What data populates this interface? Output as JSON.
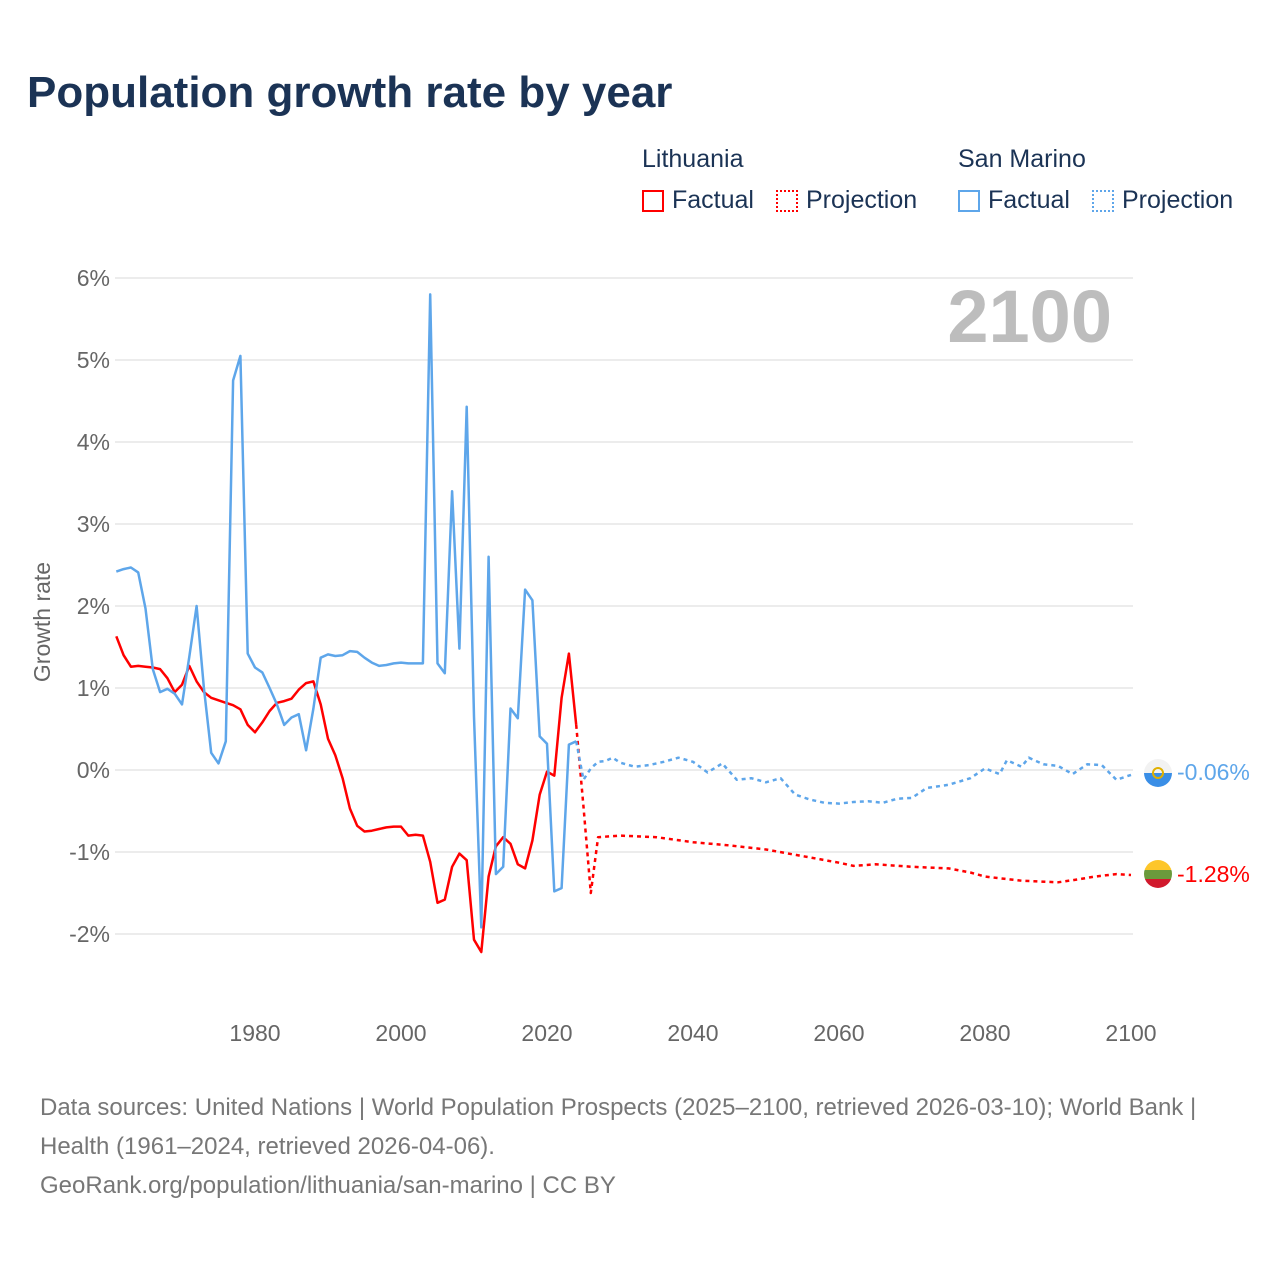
{
  "title": "Population growth rate by year",
  "legend": {
    "groups": [
      {
        "name": "Lithuania",
        "factual": "Factual",
        "projection": "Projection",
        "color": "#ff0000"
      },
      {
        "name": "San Marino",
        "factual": "Factual",
        "projection": "Projection",
        "color": "#5ea6ea"
      }
    ]
  },
  "year_label": "2100",
  "end_labels": {
    "san_marino": "-0.06%",
    "lithuania": "-1.28%"
  },
  "footer": {
    "sources": "Data sources: United Nations | World Population Prospects (2025–2100, retrieved 2026-03-10); World Bank | Health (1961–2024, retrieved 2026-04-06).",
    "link": "GeoRank.org/population/lithuania/san-marino | CC BY"
  },
  "chart_data": {
    "type": "line",
    "title": "Population growth rate by year",
    "xlabel": "",
    "ylabel": "Growth rate",
    "xlim": [
      1961,
      2100
    ],
    "ylim": [
      -3,
      6
    ],
    "xticks": [
      1980,
      2000,
      2020,
      2040,
      2060,
      2080,
      2100
    ],
    "yticks": [
      -2,
      -1,
      0,
      1,
      2,
      3,
      4,
      5,
      6
    ],
    "ytick_labels": [
      "-2%",
      "-1%",
      "0%",
      "1%",
      "2%",
      "3%",
      "4%",
      "5%",
      "6%"
    ],
    "grid": true,
    "series": [
      {
        "name": "Lithuania Factual",
        "color": "#ff0000",
        "style": "solid",
        "x_start": 1961,
        "values": [
          1.63,
          1.4,
          1.26,
          1.27,
          1.26,
          1.25,
          1.23,
          1.12,
          0.95,
          1.04,
          1.27,
          1.08,
          0.95,
          0.88,
          0.85,
          0.82,
          0.79,
          0.74,
          0.55,
          0.46,
          0.58,
          0.72,
          0.82,
          0.84,
          0.87,
          0.98,
          1.06,
          1.08,
          0.8,
          0.38,
          0.18,
          -0.1,
          -0.47,
          -0.68,
          -0.75,
          -0.74,
          -0.72,
          -0.7,
          -0.69,
          -0.69,
          -0.8,
          -0.79,
          -0.8,
          -1.12,
          -1.62,
          -1.58,
          -1.18,
          -1.02,
          -1.1,
          -2.07,
          -2.22,
          -1.3,
          -0.93,
          -0.82,
          -0.9,
          -1.15,
          -1.2,
          -0.86,
          -0.3,
          -0.02,
          -0.07,
          0.88,
          1.42,
          0.55
        ]
      },
      {
        "name": "Lithuania Projection",
        "color": "#ff0000",
        "style": "dotted",
        "x": [
          2024,
          2025,
          2026,
          2027,
          2030,
          2035,
          2040,
          2045,
          2050,
          2055,
          2060,
          2062,
          2065,
          2070,
          2075,
          2078,
          2080,
          2085,
          2090,
          2093,
          2095,
          2098,
          2100
        ],
        "values": [
          0.55,
          -0.45,
          -1.5,
          -0.82,
          -0.8,
          -0.82,
          -0.88,
          -0.92,
          -0.97,
          -1.05,
          -1.13,
          -1.17,
          -1.15,
          -1.18,
          -1.2,
          -1.25,
          -1.3,
          -1.35,
          -1.37,
          -1.33,
          -1.3,
          -1.27,
          -1.28
        ]
      },
      {
        "name": "San Marino Factual",
        "color": "#5ea6ea",
        "style": "solid",
        "x_start": 1961,
        "values": [
          2.42,
          2.45,
          2.47,
          2.41,
          1.97,
          1.23,
          0.95,
          0.99,
          0.93,
          0.8,
          1.38,
          2.0,
          1.0,
          0.21,
          0.08,
          0.35,
          4.75,
          5.05,
          1.42,
          1.25,
          1.19,
          1.0,
          0.8,
          0.55,
          0.64,
          0.68,
          0.24,
          0.75,
          1.37,
          1.41,
          1.39,
          1.4,
          1.45,
          1.44,
          1.37,
          1.31,
          1.27,
          1.28,
          1.3,
          1.31,
          1.3,
          1.3,
          1.3,
          5.8,
          1.3,
          1.18,
          3.4,
          1.48,
          4.43,
          0.65,
          -1.92,
          2.6,
          -1.27,
          -1.18,
          0.75,
          0.63,
          2.2,
          2.07,
          0.41,
          0.32,
          -1.48,
          -1.44,
          0.31,
          0.35
        ]
      },
      {
        "name": "San Marino Projection",
        "color": "#5ea6ea",
        "style": "dotted",
        "x": [
          2024,
          2025,
          2026,
          2027,
          2028,
          2029,
          2030,
          2032,
          2034,
          2036,
          2038,
          2040,
          2042,
          2044,
          2046,
          2048,
          2050,
          2052,
          2054,
          2056,
          2058,
          2060,
          2062,
          2064,
          2066,
          2068,
          2070,
          2072,
          2075,
          2078,
          2080,
          2082,
          2083,
          2085,
          2086,
          2088,
          2090,
          2092,
          2094,
          2096,
          2098,
          2100
        ],
        "values": [
          0.35,
          -0.12,
          0.02,
          0.1,
          0.11,
          0.15,
          0.09,
          0.04,
          0.06,
          0.1,
          0.15,
          0.1,
          -0.03,
          0.08,
          -0.12,
          -0.1,
          -0.15,
          -0.1,
          -0.3,
          -0.36,
          -0.4,
          -0.41,
          -0.39,
          -0.38,
          -0.4,
          -0.35,
          -0.34,
          -0.22,
          -0.18,
          -0.1,
          0.02,
          -0.05,
          0.12,
          0.04,
          0.15,
          0.07,
          0.05,
          -0.05,
          0.07,
          0.06,
          -0.12,
          -0.06
        ]
      }
    ]
  }
}
